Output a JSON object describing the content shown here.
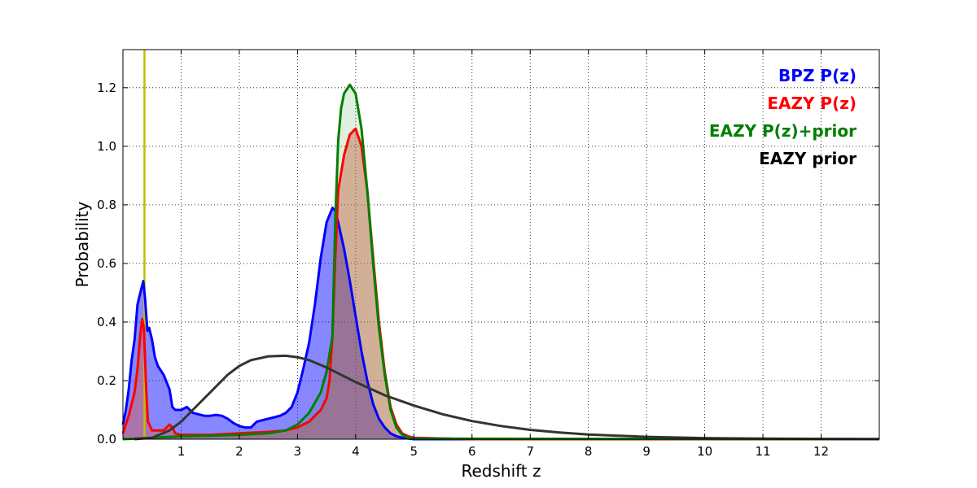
{
  "chart_data": {
    "type": "area",
    "xlabel": "Redshift z",
    "ylabel": "Probability",
    "xlim": [
      0,
      13
    ],
    "ylim": [
      0,
      1.33
    ],
    "x_ticks": [
      1,
      2,
      3,
      4,
      5,
      6,
      7,
      8,
      9,
      10,
      11,
      12
    ],
    "y_ticks": [
      0.0,
      0.2,
      0.4,
      0.6,
      0.8,
      1.0,
      1.2
    ],
    "grid": true,
    "legend_placement": "top-right",
    "vertical_line": {
      "x": 0.37,
      "color": "#bfbf00"
    },
    "series": [
      {
        "name": "BPZ P(z)",
        "color": "#0000ff",
        "fill": "rgba(0,0,255,0.47)",
        "x": [
          0,
          0.05,
          0.1,
          0.15,
          0.2,
          0.25,
          0.3,
          0.35,
          0.38,
          0.42,
          0.45,
          0.5,
          0.55,
          0.6,
          0.7,
          0.8,
          0.85,
          0.9,
          1.0,
          1.1,
          1.2,
          1.3,
          1.4,
          1.5,
          1.6,
          1.7,
          1.8,
          1.9,
          2.0,
          2.1,
          2.2,
          2.3,
          2.4,
          2.5,
          2.6,
          2.7,
          2.8,
          2.9,
          3.0,
          3.1,
          3.2,
          3.3,
          3.4,
          3.5,
          3.6,
          3.65,
          3.7,
          3.8,
          3.9,
          4.0,
          4.1,
          4.2,
          4.3,
          4.4,
          4.5,
          4.6,
          4.7,
          4.8,
          5.0,
          6.0,
          8.0,
          10.0,
          12.0,
          13.0
        ],
        "y": [
          0.05,
          0.1,
          0.17,
          0.27,
          0.34,
          0.46,
          0.5,
          0.54,
          0.48,
          0.37,
          0.38,
          0.34,
          0.28,
          0.25,
          0.22,
          0.17,
          0.11,
          0.1,
          0.1,
          0.11,
          0.09,
          0.085,
          0.08,
          0.08,
          0.083,
          0.08,
          0.07,
          0.055,
          0.045,
          0.04,
          0.04,
          0.06,
          0.065,
          0.07,
          0.075,
          0.08,
          0.09,
          0.11,
          0.16,
          0.24,
          0.33,
          0.46,
          0.62,
          0.74,
          0.79,
          0.78,
          0.74,
          0.65,
          0.54,
          0.42,
          0.3,
          0.2,
          0.12,
          0.07,
          0.04,
          0.02,
          0.01,
          0.005,
          0.0,
          0.0,
          0.0,
          0.0,
          0.0,
          0.0
        ]
      },
      {
        "name": "EAZY P(z)",
        "color": "#ff0000",
        "fill": "rgba(220,90,70,0.45)",
        "x": [
          0,
          0.1,
          0.2,
          0.25,
          0.3,
          0.33,
          0.36,
          0.4,
          0.43,
          0.5,
          0.6,
          0.7,
          0.8,
          0.85,
          0.9,
          1.0,
          1.5,
          2.0,
          2.5,
          2.8,
          3.0,
          3.2,
          3.4,
          3.5,
          3.55,
          3.6,
          3.65,
          3.7,
          3.8,
          3.9,
          4.0,
          4.1,
          4.2,
          4.3,
          4.4,
          4.5,
          4.6,
          4.7,
          4.8,
          4.9,
          5.0,
          6.0,
          13.0
        ],
        "y": [
          0.02,
          0.08,
          0.16,
          0.24,
          0.36,
          0.41,
          0.38,
          0.17,
          0.06,
          0.03,
          0.03,
          0.03,
          0.05,
          0.04,
          0.02,
          0.015,
          0.015,
          0.02,
          0.025,
          0.03,
          0.04,
          0.06,
          0.1,
          0.14,
          0.2,
          0.35,
          0.62,
          0.85,
          0.97,
          1.04,
          1.06,
          1.0,
          0.85,
          0.62,
          0.4,
          0.23,
          0.11,
          0.05,
          0.02,
          0.01,
          0.005,
          0.0,
          0.0
        ]
      },
      {
        "name": "EAZY P(z)+prior",
        "color": "#007f00",
        "fill": "rgba(0,128,0,0.12)",
        "x": [
          0,
          0.5,
          1.0,
          1.5,
          2.0,
          2.5,
          2.8,
          3.0,
          3.2,
          3.4,
          3.5,
          3.6,
          3.65,
          3.7,
          3.75,
          3.8,
          3.9,
          4.0,
          4.1,
          4.2,
          4.3,
          4.4,
          4.5,
          4.6,
          4.7,
          4.8,
          4.9,
          5.0,
          13.0
        ],
        "y": [
          0.0,
          0.005,
          0.01,
          0.012,
          0.015,
          0.02,
          0.03,
          0.05,
          0.09,
          0.16,
          0.23,
          0.35,
          0.75,
          1.02,
          1.13,
          1.18,
          1.21,
          1.18,
          1.06,
          0.85,
          0.6,
          0.38,
          0.22,
          0.1,
          0.04,
          0.015,
          0.005,
          0.002,
          0.0
        ]
      },
      {
        "name": "EAZY prior",
        "color": "#333333",
        "fill": "none",
        "x": [
          0.2,
          0.5,
          0.8,
          1.0,
          1.2,
          1.5,
          1.8,
          2.0,
          2.2,
          2.5,
          2.8,
          3.0,
          3.2,
          3.5,
          3.8,
          4.0,
          4.5,
          5.0,
          5.5,
          6.0,
          6.5,
          7.0,
          7.5,
          8.0,
          9.0,
          10.0,
          11.0,
          12.0,
          13.0
        ],
        "y": [
          0.0,
          0.005,
          0.03,
          0.06,
          0.1,
          0.16,
          0.22,
          0.25,
          0.27,
          0.283,
          0.285,
          0.28,
          0.27,
          0.245,
          0.215,
          0.195,
          0.15,
          0.115,
          0.085,
          0.062,
          0.045,
          0.032,
          0.023,
          0.016,
          0.008,
          0.004,
          0.002,
          0.001,
          0.0005
        ]
      }
    ]
  }
}
